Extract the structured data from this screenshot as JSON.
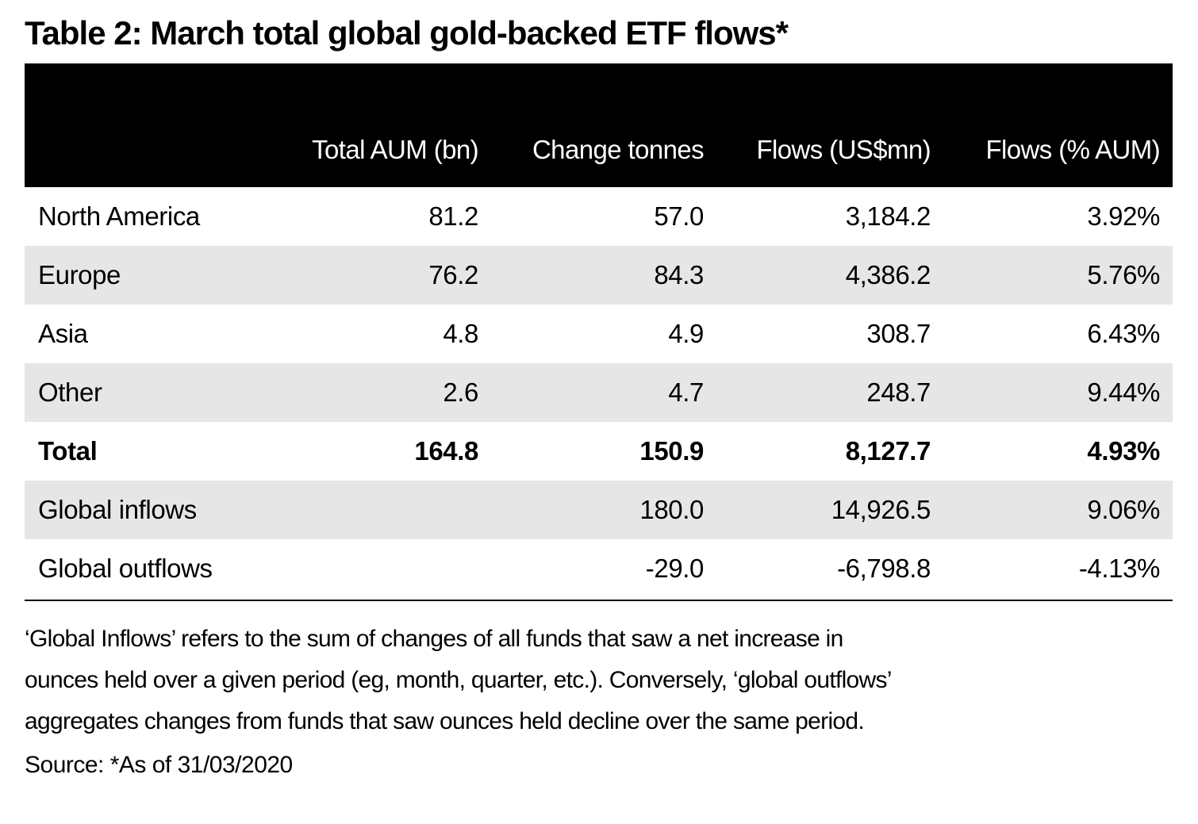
{
  "title": "Table 2: March total global gold-backed ETF flows*",
  "colors": {
    "header_bg": "#000000",
    "header_text": "#ffffff",
    "stripe": "#e6e6e6"
  },
  "chart_data": {
    "type": "table",
    "title": "Table 2: March total global gold-backed ETF flows*",
    "columns": [
      "",
      "Total AUM (bn)",
      "Change tonnes",
      "Flows (US$mn)",
      "Flows (% AUM)"
    ],
    "rows": [
      {
        "label": "North America",
        "values": [
          "81.2",
          "57.0",
          "3,184.2",
          "3.92%"
        ],
        "bold": false,
        "shaded": false
      },
      {
        "label": "Europe",
        "values": [
          "76.2",
          "84.3",
          "4,386.2",
          "5.76%"
        ],
        "bold": false,
        "shaded": true
      },
      {
        "label": "Asia",
        "values": [
          "4.8",
          "4.9",
          "308.7",
          "6.43%"
        ],
        "bold": false,
        "shaded": false
      },
      {
        "label": "Other",
        "values": [
          "2.6",
          "4.7",
          "248.7",
          "9.44%"
        ],
        "bold": false,
        "shaded": true
      },
      {
        "label": "Total",
        "values": [
          "164.8",
          "150.9",
          "8,127.7",
          "4.93%"
        ],
        "bold": true,
        "shaded": false
      },
      {
        "label": "Global inflows",
        "values": [
          "",
          "180.0",
          "14,926.5",
          "9.06%"
        ],
        "bold": false,
        "shaded": true
      },
      {
        "label": "Global outflows",
        "values": [
          "",
          "-29.0",
          "-6,798.8",
          "-4.13%"
        ],
        "bold": false,
        "shaded": false
      }
    ]
  },
  "note_lines": [
    "‘Global Inflows’ refers to the sum of changes of all funds that saw a net increase in",
    "ounces held over a given period (eg, month, quarter, etc.). Conversely, ‘global outflows’",
    "aggregates changes from funds that saw ounces held decline over the same period."
  ],
  "source": "Source: *As of 31/03/2020"
}
